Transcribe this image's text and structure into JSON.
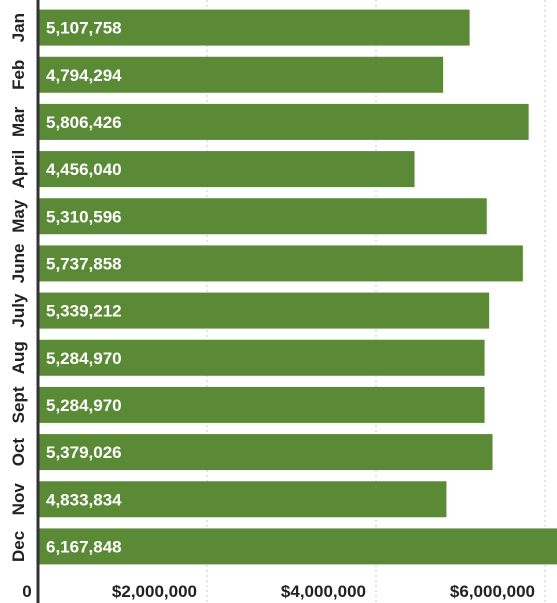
{
  "chart_data": {
    "type": "bar",
    "orientation": "horizontal",
    "categories": [
      "Jan",
      "Feb",
      "Mar",
      "April",
      "May",
      "June",
      "July",
      "Aug",
      "Sept",
      "Oct",
      "Nov",
      "Dec"
    ],
    "values": [
      5107758,
      4794294,
      5806426,
      4456040,
      5310596,
      5737858,
      5339212,
      5284970,
      5284970,
      5379026,
      4833834,
      6167848
    ],
    "value_labels": [
      "5,107,758",
      "4,794,294",
      "5,806,426",
      "4,456,040",
      "5,310,596",
      "5,737,858",
      "5,339,212",
      "5,284,970",
      "5,284,970",
      "5,379,026",
      "4,833,834",
      "6,167,848"
    ],
    "x_ticks": [
      0,
      2000000,
      4000000,
      6000000
    ],
    "x_tick_labels": [
      "0",
      "$2,000,000",
      "$4,000,000",
      "$6,000,000"
    ],
    "xlim": [
      0,
      6200000
    ],
    "bar_color": "#5a8a36",
    "grid": true,
    "title": "",
    "xlabel": "",
    "ylabel": ""
  }
}
